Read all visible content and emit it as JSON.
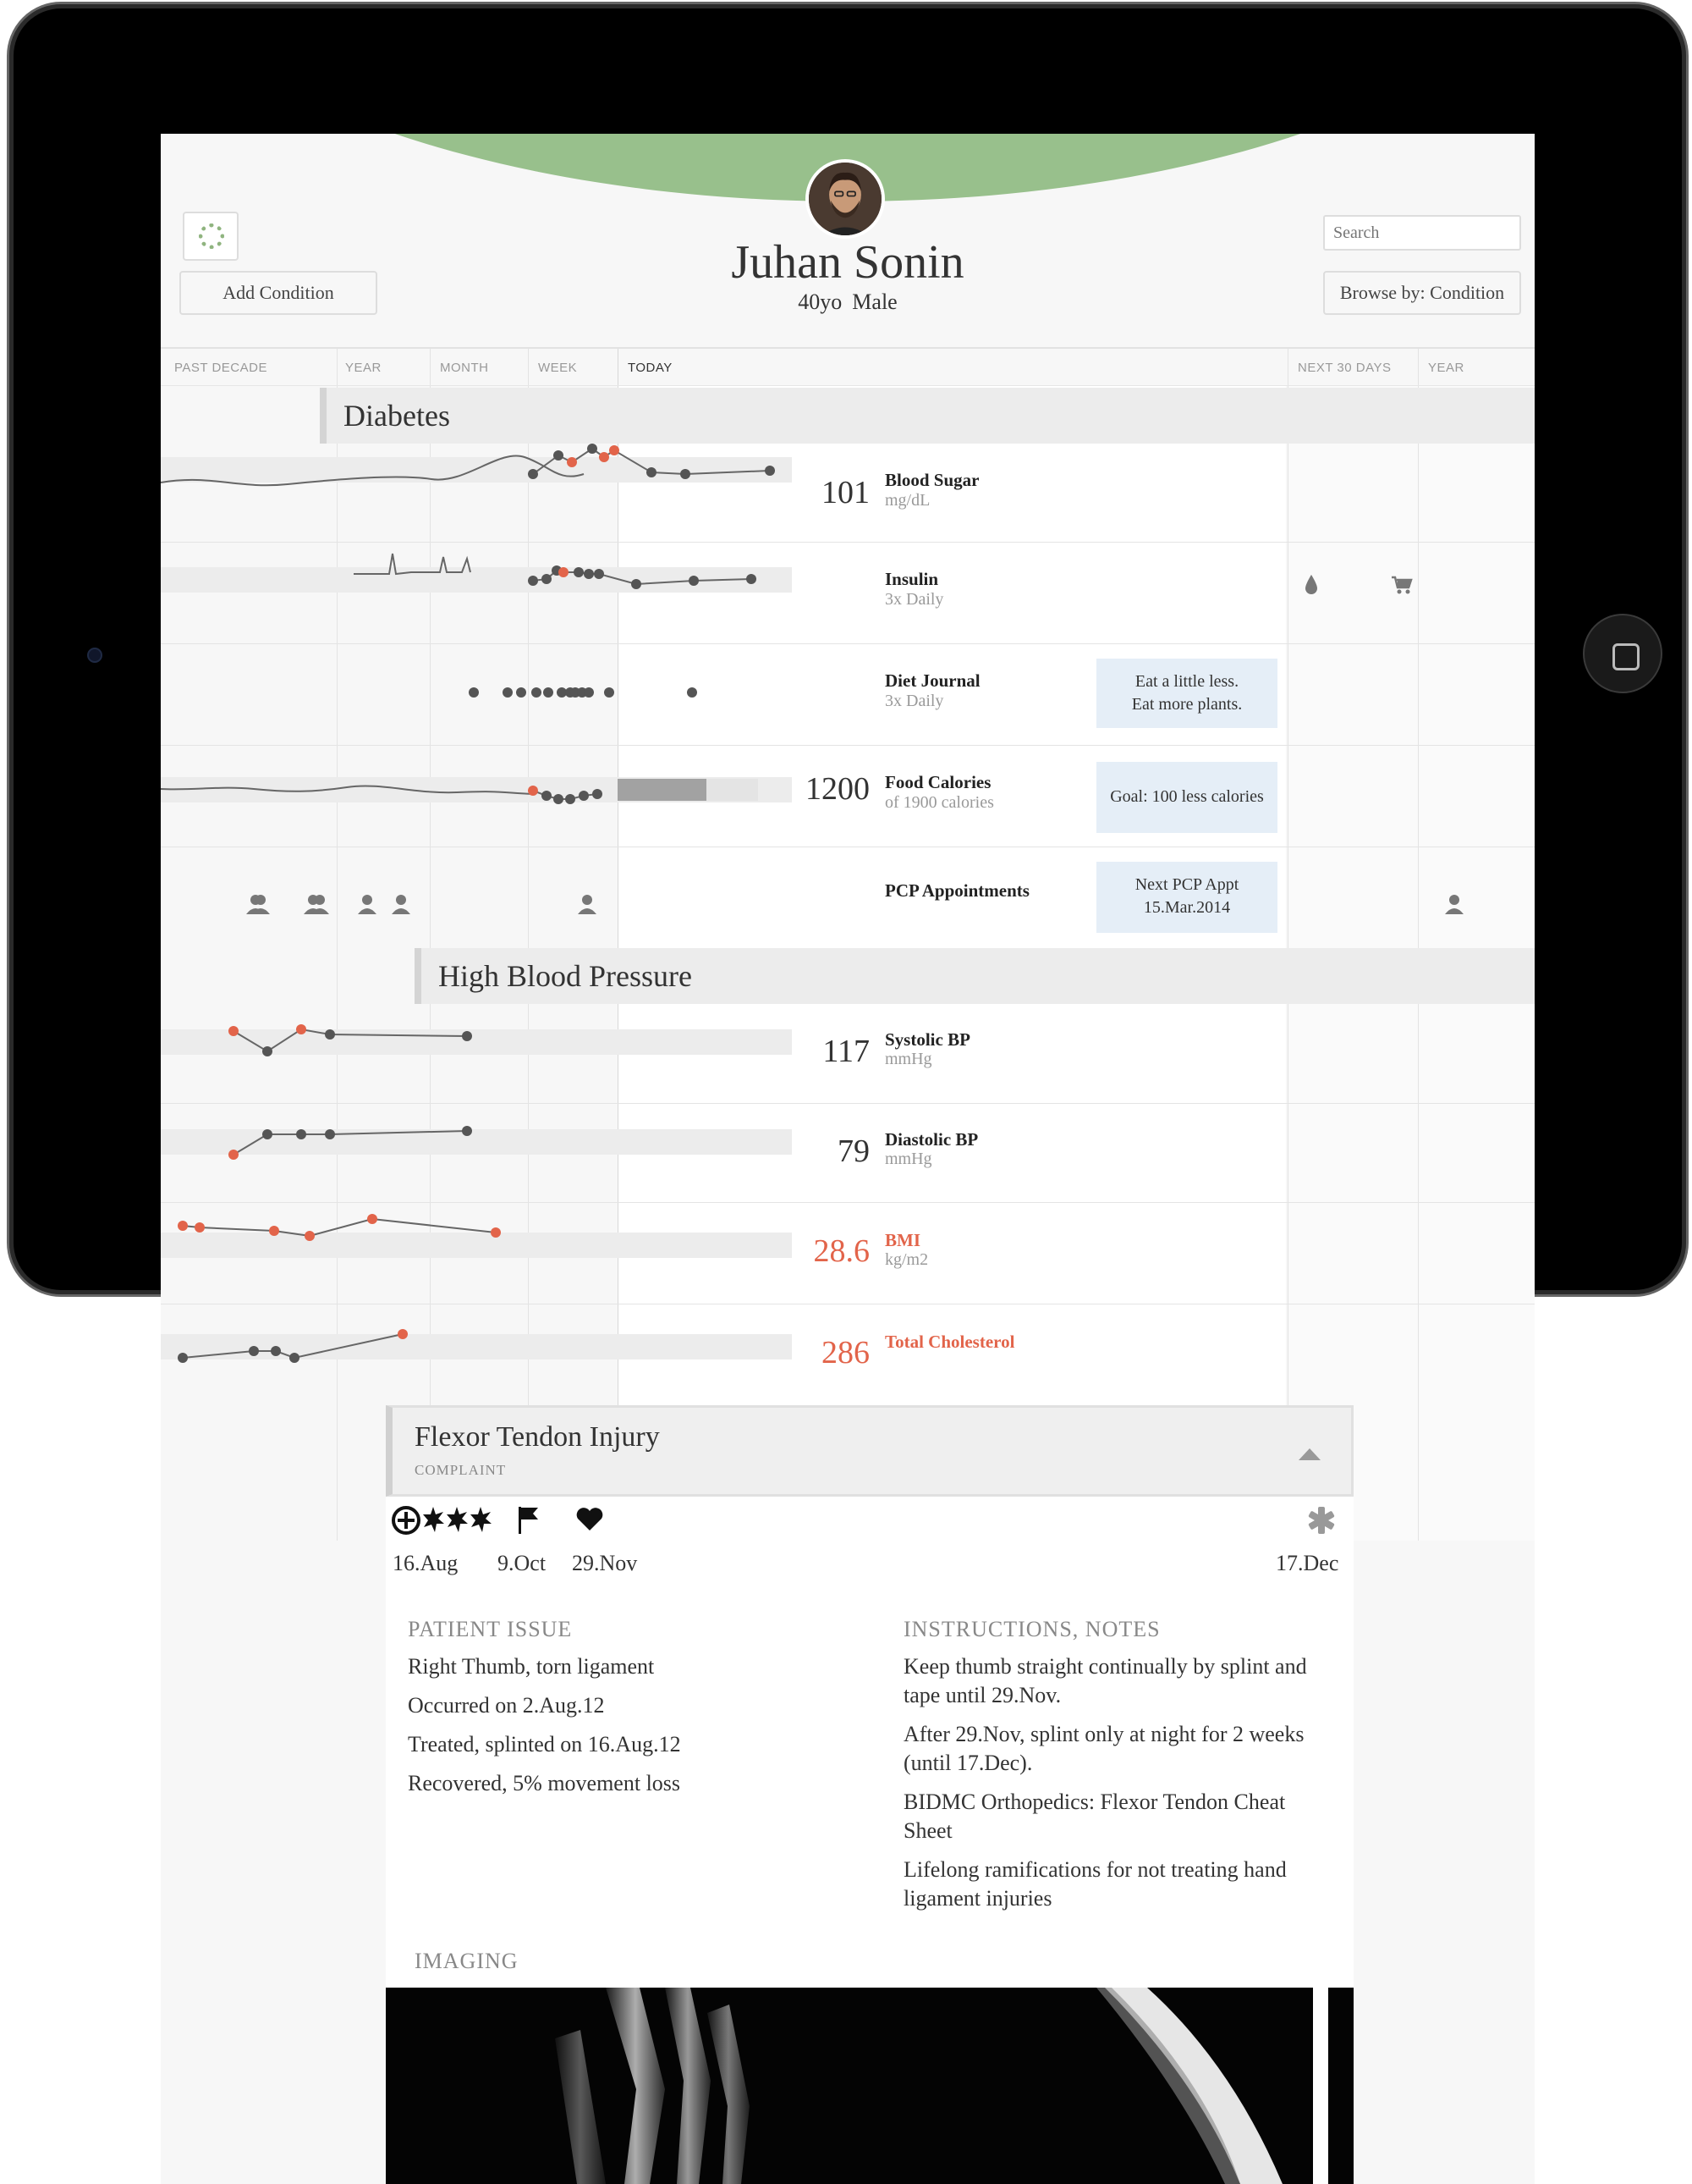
{
  "patient": {
    "name": "Juhan Sonin",
    "age": "40yo",
    "sex": "Male"
  },
  "header": {
    "add_condition": "Add Condition",
    "search_placeholder": "Search",
    "browse_by": "Browse by: Condition"
  },
  "timeline": {
    "labels": {
      "past_decade": "PAST DECADE",
      "year": "YEAR",
      "month": "MONTH",
      "week": "WEEK",
      "today": "TODAY",
      "next_30": "NEXT 30 DAYS",
      "year_future": "YEAR"
    }
  },
  "conditions": {
    "diabetes": {
      "title": "Diabetes",
      "blood_sugar": {
        "value": "101",
        "name": "Blood Sugar",
        "unit": "mg/dL"
      },
      "insulin": {
        "name": "Insulin",
        "freq": "3x Daily"
      },
      "diet": {
        "name": "Diet Journal",
        "freq": "3x Daily",
        "note_line1": "Eat a little less.",
        "note_line2": "Eat more plants."
      },
      "calories": {
        "value": "1200",
        "name": "Food Calories",
        "sub": "of 1900 calories",
        "note": "Goal: 100 less calories",
        "progress_fraction": 0.63
      },
      "pcp": {
        "name": "PCP Appointments",
        "note_line1": "Next PCP Appt",
        "note_line2": "15.Mar.2014"
      }
    },
    "hbp": {
      "title": "High Blood Pressure",
      "systolic": {
        "value": "117",
        "name": "Systolic BP",
        "unit": "mmHg"
      },
      "diastolic": {
        "value": "79",
        "name": "Diastolic BP",
        "unit": "mmHg"
      },
      "bmi": {
        "value": "28.6",
        "name": "BMI",
        "unit": "kg/m2"
      },
      "cholesterol": {
        "value": "286",
        "name": "Total Cholesterol"
      }
    }
  },
  "injury": {
    "title": "Flexor Tendon Injury",
    "type": "COMPLAINT",
    "events": [
      "16.Aug",
      "9.Oct",
      "29.Nov",
      "17.Dec"
    ],
    "patient_issue": {
      "heading": "PATIENT ISSUE",
      "lines": [
        "Right Thumb, torn ligament",
        "Occurred on 2.Aug.12",
        "Treated, splinted on 16.Aug.12",
        "Recovered, 5% movement loss"
      ]
    },
    "instructions": {
      "heading": "INSTRUCTIONS, NOTES",
      "lines": [
        "Keep thumb straight continually by splint and tape until 29.Nov.",
        "After 29.Nov, splint only at night for 2 weeks (until 17.Dec).",
        "BIDMC Orthopedics: Flexor Tendon Cheat Sheet",
        "Lifelong ramifications for not treating hand ligament injuries"
      ]
    },
    "imaging_heading": "IMAGING"
  },
  "colors": {
    "accent_green": "#98c08c",
    "alert": "#e2644a",
    "note_bg": "#e5eef7",
    "point": "#555555"
  },
  "icons": [
    "settings-logo-icon",
    "insulin-drop-icon",
    "pharmacy-cart-icon",
    "person-icon",
    "injury-star-icon",
    "flag-icon",
    "heart-icon",
    "medical-cross-icon",
    "collapse-arrow-icon"
  ]
}
